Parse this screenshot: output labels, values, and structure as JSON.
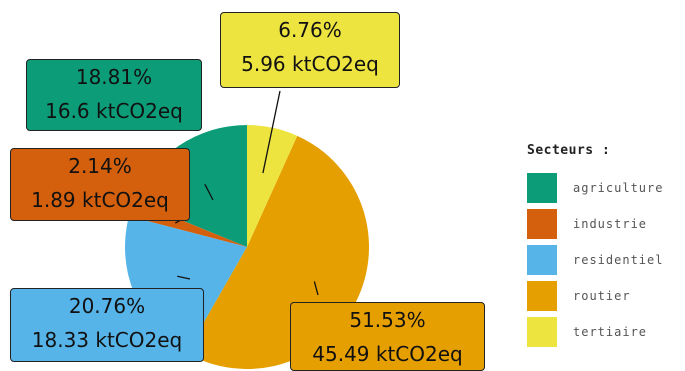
{
  "chart_data": {
    "type": "pie",
    "categories": [
      "agriculture",
      "industrie",
      "residentiel",
      "routier",
      "tertiaire"
    ],
    "values": [
      16.6,
      1.89,
      18.33,
      45.49,
      5.96
    ],
    "percentages": [
      18.81,
      2.14,
      20.76,
      51.53,
      6.76
    ],
    "labels": [
      {
        "pct": "18.81%",
        "value": "16.6 ktCO2eq"
      },
      {
        "pct": "2.14%",
        "value": "1.89 ktCO2eq"
      },
      {
        "pct": "20.76%",
        "value": "18.33 ktCO2eq"
      },
      {
        "pct": "51.53%",
        "value": "45.49 ktCO2eq"
      },
      {
        "pct": "6.76%",
        "value": "5.96 ktCO2eq"
      }
    ],
    "colors": [
      "#0c9c78",
      "#d45f0c",
      "#56b4e9",
      "#e59f00",
      "#ede440"
    ],
    "legend_title": "Secteurs :",
    "legend_position": "right"
  }
}
